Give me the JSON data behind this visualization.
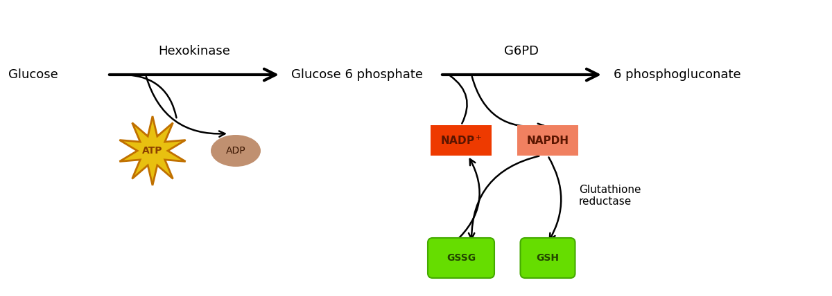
{
  "bg_color": "#ffffff",
  "glucose_label": "Glucose",
  "g6p_label": "Glucose 6 phosphate",
  "phosphogluconate_label": "6 phosphogluconate",
  "hexokinase_label": "Hexokinase",
  "g6pd_label": "G6PD",
  "atp_label": "ATP",
  "adp_label": "ADP",
  "nadp_label": "NADP$^+$",
  "napdh_label": "NAPDH",
  "gssg_label": "GSSG",
  "gsh_label": "GSH",
  "glut_reductase_label": "Glutathione\nreductase",
  "atp_fill": "#E8C010",
  "atp_edge": "#C07000",
  "atp_text": "#8B4000",
  "adp_fill": "#C09070",
  "nadp_fill": "#EE3A00",
  "nadp_text": "#5a1500",
  "napdh_fill": "#F08060",
  "napdh_text": "#5a1500",
  "gssg_fill": "#66DD00",
  "gssg_edge": "#44AA00",
  "gssg_text": "#224400",
  "gsh_fill": "#66DD00",
  "gsh_edge": "#44AA00",
  "gsh_text": "#224400",
  "text_color": "#000000",
  "arrow_color": "#000000"
}
